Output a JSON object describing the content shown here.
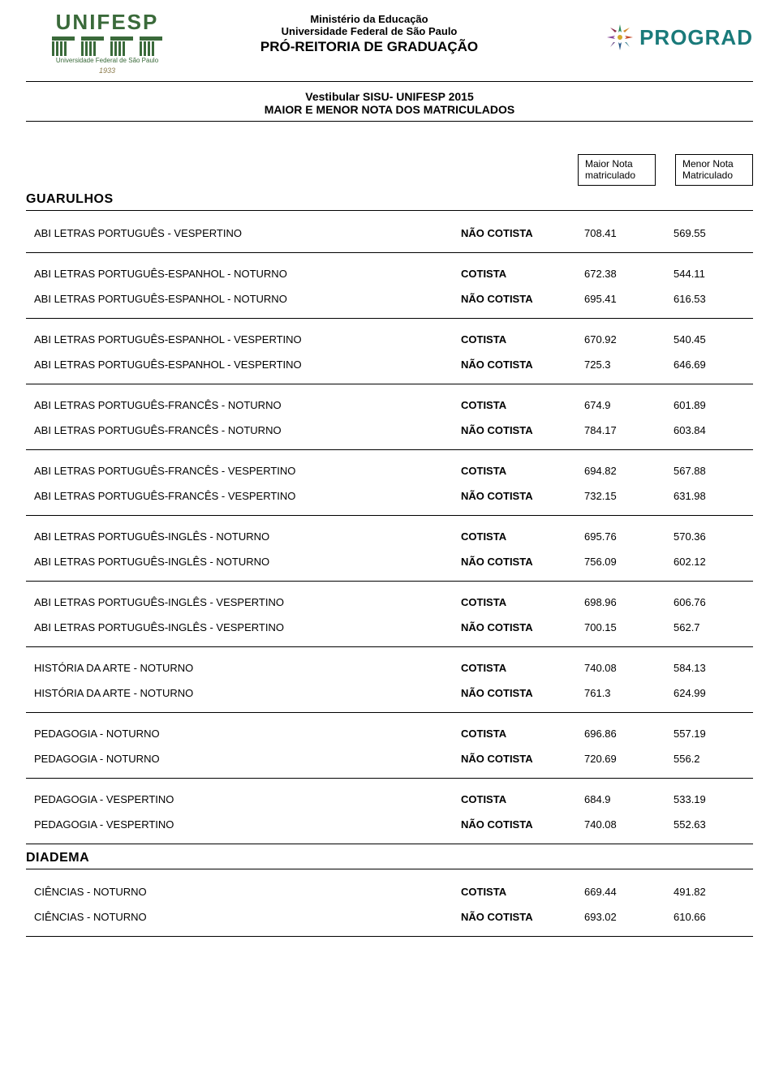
{
  "header": {
    "unifesp_name": "UNIFESP",
    "unifesp_sub": "Universidade Federal de São Paulo",
    "unifesp_year": "1933",
    "ministry": "Ministério da Educação",
    "university": "Universidade Federal de São Paulo",
    "proreitoria": "PRÓ-REITORIA DE GRADUAÇÃO",
    "prograd": "PROGRAD",
    "subtitle1": "Vestibular SISU- UNIFESP 2015",
    "subtitle2": "MAIOR E MENOR NOTA DOS MATRICULADOS"
  },
  "columns": {
    "maior": "Maior Nota matriculado",
    "menor": "Menor Nota Matriculado"
  },
  "campuses": [
    {
      "name": "GUARULHOS",
      "groups": [
        [
          {
            "course": "ABI LETRAS PORTUGUÊS - VESPERTINO",
            "type": "NÃO COTISTA",
            "maior": "708.41",
            "menor": "569.55"
          }
        ],
        [
          {
            "course": "ABI LETRAS PORTUGUÊS-ESPANHOL - NOTURNO",
            "type": "COTISTA",
            "maior": "672.38",
            "menor": "544.11"
          },
          {
            "course": "ABI LETRAS PORTUGUÊS-ESPANHOL - NOTURNO",
            "type": "NÃO COTISTA",
            "maior": "695.41",
            "menor": "616.53"
          }
        ],
        [
          {
            "course": "ABI LETRAS PORTUGUÊS-ESPANHOL - VESPERTINO",
            "type": "COTISTA",
            "maior": "670.92",
            "menor": "540.45"
          },
          {
            "course": "ABI LETRAS PORTUGUÊS-ESPANHOL - VESPERTINO",
            "type": "NÃO COTISTA",
            "maior": "725.3",
            "menor": "646.69"
          }
        ],
        [
          {
            "course": "ABI LETRAS PORTUGUÊS-FRANCÊS - NOTURNO",
            "type": "COTISTA",
            "maior": "674.9",
            "menor": "601.89"
          },
          {
            "course": "ABI LETRAS PORTUGUÊS-FRANCÊS - NOTURNO",
            "type": "NÃO COTISTA",
            "maior": "784.17",
            "menor": "603.84"
          }
        ],
        [
          {
            "course": "ABI LETRAS PORTUGUÊS-FRANCÊS - VESPERTINO",
            "type": "COTISTA",
            "maior": "694.82",
            "menor": "567.88"
          },
          {
            "course": "ABI LETRAS PORTUGUÊS-FRANCÊS - VESPERTINO",
            "type": "NÃO COTISTA",
            "maior": "732.15",
            "menor": "631.98"
          }
        ],
        [
          {
            "course": "ABI LETRAS PORTUGUÊS-INGLÊS - NOTURNO",
            "type": "COTISTA",
            "maior": "695.76",
            "menor": "570.36"
          },
          {
            "course": "ABI LETRAS PORTUGUÊS-INGLÊS - NOTURNO",
            "type": "NÃO COTISTA",
            "maior": "756.09",
            "menor": "602.12"
          }
        ],
        [
          {
            "course": "ABI LETRAS PORTUGUÊS-INGLÊS - VESPERTINO",
            "type": "COTISTA",
            "maior": "698.96",
            "menor": "606.76"
          },
          {
            "course": "ABI LETRAS PORTUGUÊS-INGLÊS - VESPERTINO",
            "type": "NÃO COTISTA",
            "maior": "700.15",
            "menor": "562.7"
          }
        ],
        [
          {
            "course": "HISTÓRIA DA ARTE - NOTURNO",
            "type": "COTISTA",
            "maior": "740.08",
            "menor": "584.13"
          },
          {
            "course": "HISTÓRIA DA ARTE - NOTURNO",
            "type": "NÃO COTISTA",
            "maior": "761.3",
            "menor": "624.99"
          }
        ],
        [
          {
            "course": "PEDAGOGIA - NOTURNO",
            "type": "COTISTA",
            "maior": "696.86",
            "menor": "557.19"
          },
          {
            "course": "PEDAGOGIA - NOTURNO",
            "type": "NÃO COTISTA",
            "maior": "720.69",
            "menor": "556.2"
          }
        ],
        [
          {
            "course": "PEDAGOGIA - VESPERTINO",
            "type": "COTISTA",
            "maior": "684.9",
            "menor": "533.19"
          },
          {
            "course": "PEDAGOGIA - VESPERTINO",
            "type": "NÃO COTISTA",
            "maior": "740.08",
            "menor": "552.63"
          }
        ]
      ]
    },
    {
      "name": "DIADEMA",
      "groups": [
        [
          {
            "course": "CIÊNCIAS - NOTURNO",
            "type": "COTISTA",
            "maior": "669.44",
            "menor": "491.82"
          },
          {
            "course": "CIÊNCIAS - NOTURNO",
            "type": "NÃO COTISTA",
            "maior": "693.02",
            "menor": "610.66"
          }
        ]
      ]
    }
  ]
}
